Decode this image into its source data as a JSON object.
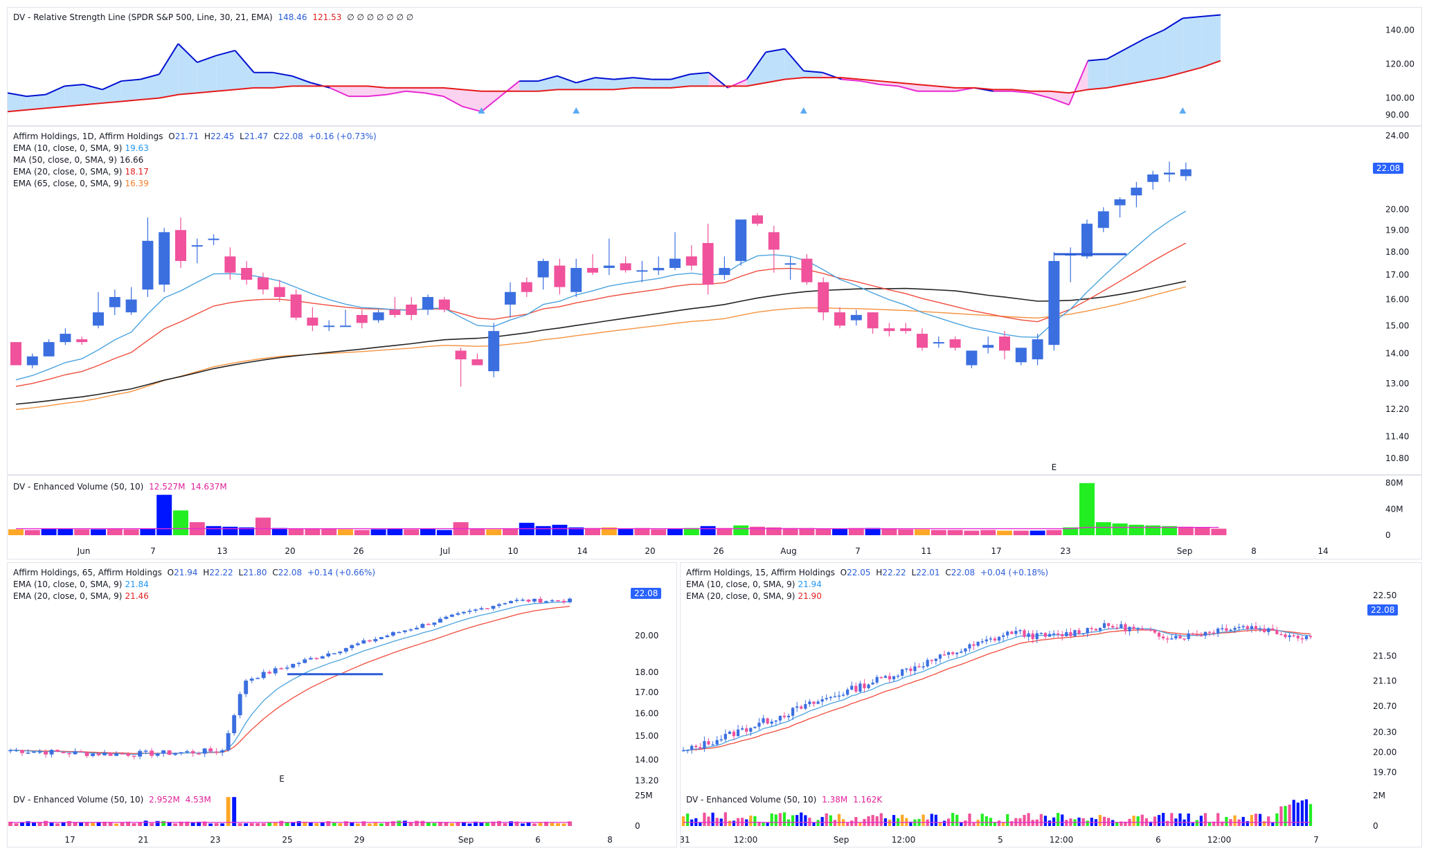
{
  "colors": {
    "up": "#3b6fe0",
    "down": "#f0529c",
    "vol_blue": "#0015ff",
    "vol_pink": "#f0529c",
    "vol_green": "#22ee22",
    "vol_orange": "#ffa726",
    "ema10": "#4aa3df",
    "ema20": "#ef4b3b",
    "ma50": "#222222",
    "ema65": "#f5923e",
    "rs_line": "#0010d0",
    "rs_ema": "#e51919",
    "rs_fill_up": "#bfe0fb",
    "rs_fill_down": "#fbd3f0",
    "rs_fill_down_line": "#e629d3",
    "vol_avg": "#e629d3",
    "tag_bg": "#2962ff",
    "marker": "#5aaaf5",
    "earnings": "#e53935"
  },
  "rs_pane": {
    "legend": {
      "title": "DV - Relative Strength Line (SPDR S&P 500, Line, 30, 21, EMA)",
      "v1": "148.46",
      "v2": "121.53",
      "extra": "∅ ∅ ∅ ∅ ∅ ∅ ∅"
    },
    "ticks": [
      "140.00",
      "120.00",
      "100.00",
      "90.00"
    ]
  },
  "main_pane": {
    "legend": {
      "title": "Affirm Holdings, 1D, Affirm Holdings",
      "o_label": "O",
      "o": "21.71",
      "h_label": "H",
      "h": "22.45",
      "l_label": "L",
      "l": "21.47",
      "c_label": "C",
      "c": "22.08",
      "chg": "+0.16 (+0.73%)",
      "ema10_label": "EMA (10, close, 0, SMA, 9)",
      "ema10": "19.63",
      "ma50_label": "MA (50, close, 0, SMA, 9)",
      "ma50": "16.66",
      "ema20_label": "EMA (20, close, 0, SMA, 9)",
      "ema20": "18.17",
      "ema65_label": "EMA (65, close, 0, SMA, 9)",
      "ema65": "16.39"
    },
    "price_tag": "22.08",
    "earnings_label": "E",
    "ticks": [
      "24.00",
      "20.00",
      "19.00",
      "18.00",
      "17.00",
      "16.00",
      "15.00",
      "14.00",
      "13.00",
      "12.20",
      "11.40",
      "10.80"
    ]
  },
  "vol_pane": {
    "legend": {
      "title": "DV - Enhanced Volume (50, 10)",
      "v1": "12.527M",
      "v2": "14.637M"
    },
    "ticks": [
      "80M",
      "40M",
      "0"
    ],
    "dates": [
      "Jun",
      "7",
      "13",
      "20",
      "26",
      "Jul",
      "10",
      "14",
      "20",
      "26",
      "Aug",
      "7",
      "11",
      "17",
      "23",
      "Sep",
      "8",
      "14"
    ]
  },
  "bl_pane": {
    "legend": {
      "title": "Affirm Holdings, 65, Affirm Holdings",
      "o": "21.94",
      "h": "22.22",
      "l": "21.80",
      "c": "22.08",
      "chg": "+0.14 (+0.66%)",
      "ema10_label": "EMA (10, close, 0, SMA, 9)",
      "ema10": "21.84",
      "ema20_label": "EMA (20, close, 0, SMA, 9)",
      "ema20": "21.46"
    },
    "price_tag": "22.08",
    "earnings_label": "E",
    "ticks": [
      "20.00",
      "18.00",
      "17.00",
      "16.00",
      "15.00",
      "14.00",
      "13.20"
    ],
    "vol_legend": {
      "title": "DV - Enhanced Volume (50, 10)",
      "v1": "2.952M",
      "v2": "4.53M"
    },
    "vol_ticks": [
      "25M",
      "0"
    ],
    "dates": [
      "17",
      "21",
      "23",
      "25",
      "29",
      "Sep",
      "6",
      "8"
    ]
  },
  "br_pane": {
    "legend": {
      "title": "Affirm Holdings, 15, Affirm Holdings",
      "o": "22.05",
      "h": "22.22",
      "l": "22.01",
      "c": "22.08",
      "chg": "+0.04 (+0.18%)",
      "ema10_label": "EMA (10, close, 0, SMA, 9)",
      "ema10": "21.94",
      "ema20_label": "EMA (20, close, 0, SMA, 9)",
      "ema20": "21.90"
    },
    "price_tag": "22.08",
    "ticks": [
      "22.50",
      "21.50",
      "21.10",
      "20.70",
      "20.30",
      "20.00",
      "19.70"
    ],
    "vol_legend": {
      "title": "DV - Enhanced Volume (50, 10)",
      "v1": "1.38M",
      "v2": "1.162K"
    },
    "vol_ticks": [
      "2M",
      "0"
    ],
    "dates": [
      "31",
      "12:00",
      "Sep",
      "12:00",
      "5",
      "12:00",
      "6",
      "12:00",
      "7"
    ]
  },
  "chart_data": [
    {
      "type": "line",
      "title": "DV - Relative Strength Line (SPDR S&P 500, Line, 30, 21, EMA)",
      "series": [
        {
          "name": "RS Line",
          "values": [
            103,
            101,
            102,
            107,
            108,
            105,
            110,
            111,
            114,
            132,
            121,
            125,
            128,
            115,
            115,
            113,
            109,
            106,
            101,
            101,
            102,
            104,
            103,
            101,
            95,
            92,
            101,
            110,
            110,
            113,
            109,
            112,
            111,
            112,
            111,
            111,
            114,
            115,
            106,
            111,
            127,
            129,
            116,
            115,
            111,
            110,
            108,
            107,
            104,
            104,
            104,
            106,
            104,
            104,
            103,
            100,
            96,
            122,
            123,
            129,
            135,
            140,
            147,
            148,
            149
          ]
        },
        {
          "name": "RS EMA",
          "values": [
            92,
            93,
            94,
            95,
            96,
            97,
            98,
            99,
            100,
            102,
            103,
            104,
            105,
            106,
            106,
            107,
            107,
            107,
            107,
            107,
            106,
            106,
            106,
            106,
            105,
            104,
            104,
            104,
            104,
            105,
            105,
            105,
            105,
            106,
            106,
            106,
            107,
            107,
            107,
            107,
            109,
            111,
            112,
            112,
            112,
            111,
            110,
            109,
            108,
            107,
            106,
            106,
            105,
            105,
            104,
            104,
            103,
            105,
            106,
            108,
            110,
            112,
            115,
            118,
            122
          ]
        }
      ],
      "ylim": [
        88,
        150
      ]
    },
    {
      "type": "candlestick",
      "title": "Affirm Holdings, 1D, Affirm Holdings",
      "ohlc": [
        [
          14.4,
          14.4,
          13.6,
          13.6
        ],
        [
          13.6,
          14.0,
          13.5,
          13.9
        ],
        [
          13.9,
          14.5,
          13.9,
          14.4
        ],
        [
          14.4,
          14.9,
          14.3,
          14.7
        ],
        [
          14.5,
          14.6,
          14.3,
          14.4
        ],
        [
          15.0,
          16.3,
          14.9,
          15.5
        ],
        [
          15.7,
          16.4,
          15.4,
          16.1
        ],
        [
          15.5,
          16.5,
          15.4,
          16.0
        ],
        [
          16.4,
          19.6,
          16.1,
          18.5
        ],
        [
          16.6,
          19.1,
          16.3,
          18.9
        ],
        [
          19.0,
          19.6,
          17.3,
          17.6
        ],
        [
          18.3,
          18.6,
          17.5,
          18.3
        ],
        [
          18.6,
          18.8,
          18.3,
          18.6
        ],
        [
          17.8,
          18.2,
          16.8,
          17.1
        ],
        [
          17.3,
          17.6,
          16.6,
          16.8
        ],
        [
          16.9,
          17.1,
          16.2,
          16.4
        ],
        [
          16.5,
          16.8,
          15.9,
          16.1
        ],
        [
          16.2,
          16.4,
          15.2,
          15.3
        ],
        [
          15.3,
          15.7,
          14.8,
          15.0
        ],
        [
          15.0,
          15.2,
          14.8,
          15.0
        ],
        [
          15.0,
          15.6,
          15.0,
          15.0
        ],
        [
          15.4,
          15.6,
          14.9,
          15.1
        ],
        [
          15.2,
          15.6,
          15.1,
          15.5
        ],
        [
          15.6,
          16.1,
          15.3,
          15.4
        ],
        [
          15.8,
          16.1,
          15.2,
          15.4
        ],
        [
          15.6,
          16.2,
          15.4,
          16.1
        ],
        [
          16.0,
          16.1,
          15.5,
          15.6
        ],
        [
          14.1,
          14.2,
          12.9,
          13.8
        ],
        [
          13.8,
          14.0,
          13.6,
          13.6
        ],
        [
          13.4,
          15.1,
          13.2,
          14.8
        ],
        [
          15.8,
          16.7,
          15.3,
          16.3
        ],
        [
          16.7,
          16.9,
          16.1,
          16.3
        ],
        [
          16.9,
          17.7,
          16.4,
          17.6
        ],
        [
          17.4,
          17.7,
          16.2,
          16.5
        ],
        [
          16.3,
          17.7,
          16.1,
          17.3
        ],
        [
          17.3,
          17.9,
          17.0,
          17.1
        ],
        [
          17.3,
          18.6,
          17.0,
          17.4
        ],
        [
          17.5,
          17.8,
          17.1,
          17.2
        ],
        [
          17.2,
          17.6,
          16.7,
          17.2
        ],
        [
          17.2,
          17.8,
          17.0,
          17.3
        ],
        [
          17.3,
          18.9,
          17.2,
          17.7
        ],
        [
          17.8,
          18.3,
          17.2,
          17.4
        ],
        [
          18.4,
          19.3,
          16.2,
          16.6
        ],
        [
          17.0,
          17.8,
          16.8,
          17.3
        ],
        [
          17.6,
          19.5,
          17.4,
          19.5
        ],
        [
          19.7,
          19.8,
          19.2,
          19.3
        ],
        [
          18.9,
          19.2,
          17.1,
          18.1
        ],
        [
          17.5,
          17.8,
          16.8,
          17.5
        ],
        [
          17.7,
          17.9,
          16.6,
          16.7
        ],
        [
          16.7,
          16.9,
          15.2,
          15.5
        ],
        [
          15.5,
          15.7,
          14.9,
          15.0
        ],
        [
          15.2,
          15.6,
          15.0,
          15.4
        ],
        [
          15.5,
          15.5,
          14.7,
          14.9
        ],
        [
          14.9,
          15.1,
          14.6,
          14.8
        ],
        [
          14.9,
          15.1,
          14.7,
          14.8
        ],
        [
          14.7,
          14.9,
          14.1,
          14.2
        ],
        [
          14.4,
          14.6,
          14.2,
          14.4
        ],
        [
          14.5,
          14.6,
          14.1,
          14.2
        ],
        [
          13.6,
          14.1,
          13.5,
          14.1
        ],
        [
          14.2,
          14.6,
          14.0,
          14.3
        ],
        [
          14.6,
          14.8,
          13.8,
          14.1
        ],
        [
          13.7,
          14.2,
          13.6,
          14.2
        ],
        [
          13.8,
          14.7,
          13.6,
          14.5
        ],
        [
          14.3,
          18.0,
          14.1,
          17.6
        ],
        [
          17.9,
          18.2,
          16.7,
          17.9
        ],
        [
          17.8,
          19.5,
          17.7,
          19.3
        ],
        [
          19.1,
          20.1,
          18.9,
          19.9
        ],
        [
          20.2,
          20.6,
          19.6,
          20.5
        ],
        [
          20.7,
          21.4,
          20.1,
          21.1
        ],
        [
          21.4,
          22.0,
          21.0,
          21.8
        ],
        [
          21.8,
          22.5,
          21.4,
          21.9
        ],
        [
          21.71,
          22.45,
          21.47,
          22.08
        ]
      ],
      "series": [
        {
          "name": "EMA (10, close, 0, SMA, 9)",
          "last": 19.63
        },
        {
          "name": "MA (50, close, 0, SMA, 9)",
          "last": 16.66
        },
        {
          "name": "EMA (20, close, 0, SMA, 9)",
          "last": 18.17
        },
        {
          "name": "EMA (65, close, 0, SMA, 9)",
          "last": 16.39
        }
      ],
      "ylim": [
        10.6,
        24.2
      ],
      "log_scale": true
    },
    {
      "type": "bar",
      "title": "DV - Enhanced Volume (50, 10)",
      "values": [
        9,
        8,
        10,
        10,
        9,
        9,
        10,
        9,
        10,
        62,
        38,
        20,
        14,
        13,
        12,
        27,
        11,
        10,
        10,
        10,
        9,
        8,
        9,
        10,
        9,
        10,
        8,
        20,
        10,
        9,
        10,
        19,
        14,
        16,
        12,
        11,
        12,
        10,
        11,
        9,
        10,
        11,
        14,
        11,
        15,
        13,
        12,
        11,
        11,
        10,
        10,
        11,
        11,
        10,
        9,
        9,
        8,
        8,
        7,
        8,
        7,
        7,
        7,
        8,
        12,
        80,
        20,
        18,
        16,
        15,
        14,
        13,
        12,
        10
      ],
      "ylim": [
        0,
        85
      ],
      "yunit": "M"
    }
  ]
}
